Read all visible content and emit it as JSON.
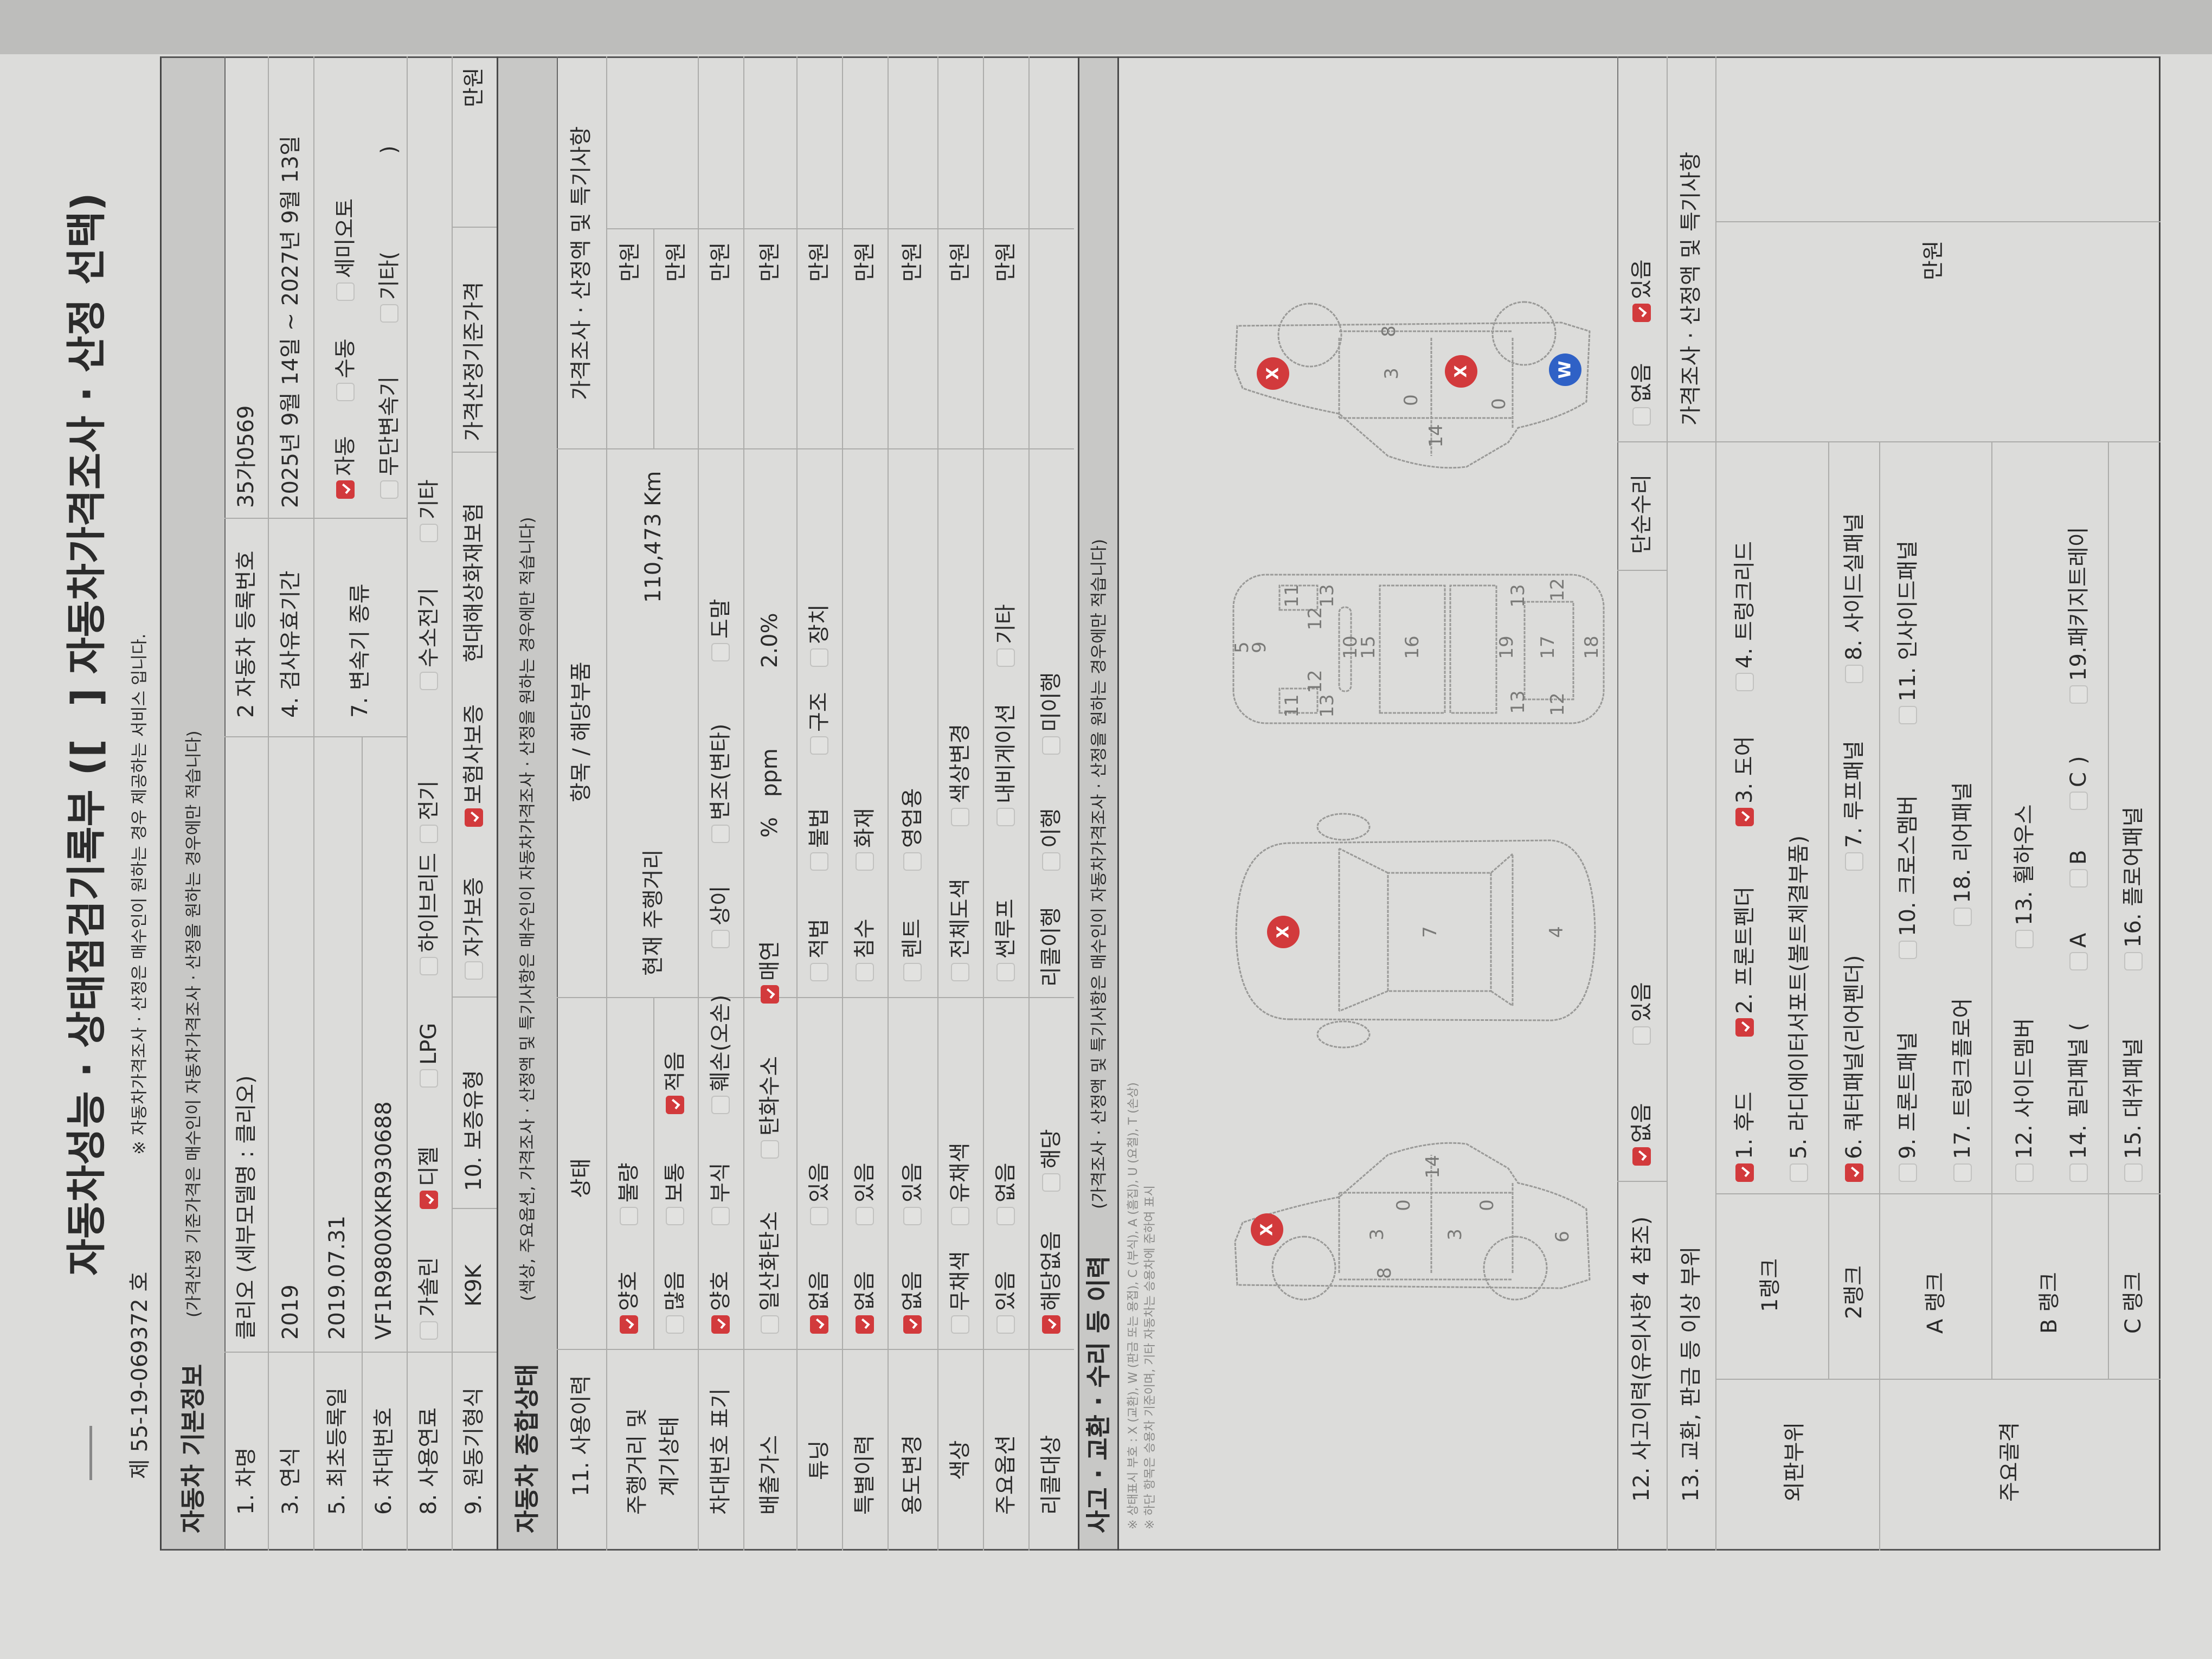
{
  "header": {
    "title_left": "자동차성능 · 상태점검기록부 ([",
    "title_right": "] 자동차가격조사 · 산정 선택)",
    "doc_number": "제 55-19-069372 호",
    "service_note": "※ 자동차가격조사 · 산정은 매수인이 원하는 경우 제공하는 서비스 입니다."
  },
  "basic": {
    "title": "자동차 기본정보",
    "note": "(가격산정 기준가격은 매수인이 자동차가격조사 · 산정을 원하는 경우에만 적습니다)",
    "car_name_label": "1. 차명",
    "car_name": "클리오 (세부모델명 : 클리오)",
    "reg_no_label": "2 자동차 등록번호",
    "reg_no": "35가0569",
    "year_label": "3. 연식",
    "year": "2019",
    "inspection_label": "4. 검사유효기간",
    "inspection": "2025년 9월 14일 ~ 2027년 9월 13일",
    "first_reg_label": "5. 최초등록일",
    "first_reg": "2019.07.31",
    "vin_label": "6. 차대번호",
    "vin": "VF1R9800XKR930688",
    "transmission_label": "7. 변속기 종류",
    "transmission_options": [
      {
        "label": "자동",
        "checked": true
      },
      {
        "label": "수동",
        "checked": false
      },
      {
        "label": "세미오토",
        "checked": false
      },
      {
        "label": "무단변속기",
        "checked": false
      },
      {
        "label": "기타(",
        "checked": false
      }
    ],
    "transmission_other_close": ")",
    "fuel_label": "8. 사용연료",
    "fuel_options": [
      {
        "label": "가솔린",
        "checked": false
      },
      {
        "label": "디젤",
        "checked": true
      },
      {
        "label": "LPG",
        "checked": false
      },
      {
        "label": "하이브리드",
        "checked": false
      },
      {
        "label": "전기",
        "checked": false
      },
      {
        "label": "수소전기",
        "checked": false
      },
      {
        "label": "기타",
        "checked": false
      }
    ],
    "engine_label": "9. 원동기형식",
    "engine": "K9K",
    "warranty_label": "10. 보증유형",
    "warranty_options": [
      {
        "label": "자가보증",
        "checked": false
      },
      {
        "label": "보험사보증",
        "checked": true
      }
    ],
    "insurer": "현대해상화재보험",
    "base_price_label": "가격산정기준가격",
    "base_price_unit": "만원"
  },
  "status": {
    "title": "자동차 종합상태",
    "note": "(색상, 주요옵션, 가격조사 · 산정액 및 특기사항은 매수인이 자동차가격조사 · 산정을 원하는 경우에만 적습니다)",
    "headers": {
      "usage": "11. 사용이력",
      "state": "상태",
      "item": "항목 / 해당부품",
      "price": "가격조사 · 산정액 및 특기사항"
    },
    "price_unit": "만원",
    "mileage": {
      "label_line1": "주행거리 및",
      "label_line2": "계기상태",
      "options": [
        {
          "label": "양호",
          "checked": true
        },
        {
          "label": "불량",
          "checked": false
        },
        {
          "label": "많음",
          "checked": false
        },
        {
          "label": "보통",
          "checked": false
        },
        {
          "label": "적음",
          "checked": true
        }
      ],
      "item_label": "현재 주행거리",
      "value": "110,473 Km"
    },
    "vin_mark": {
      "label": "차대번호 표기",
      "options": [
        {
          "label": "양호",
          "checked": true
        },
        {
          "label": "부식",
          "checked": false
        },
        {
          "label": "훼손(오손)",
          "checked": false
        },
        {
          "label": "상이",
          "checked": false
        },
        {
          "label": "변조(변타)",
          "checked": false
        },
        {
          "label": "도말",
          "checked": false
        }
      ]
    },
    "emission": {
      "label": "배출가스",
      "options": [
        {
          "label": "일산화탄소",
          "checked": false
        },
        {
          "label": "탄화수소",
          "checked": false
        },
        {
          "label": "매연",
          "checked": true
        }
      ],
      "values": [
        "%",
        "ppm",
        "2.0%"
      ]
    },
    "tuning": {
      "label": "튜닝",
      "options": [
        {
          "label": "없음",
          "checked": true
        },
        {
          "label": "있음",
          "checked": false
        },
        {
          "label": "적법",
          "checked": false
        },
        {
          "label": "불법",
          "checked": false
        },
        {
          "label": "구조",
          "checked": false
        },
        {
          "label": "장치",
          "checked": false
        }
      ]
    },
    "special": {
      "label": "특별이력",
      "options": [
        {
          "label": "없음",
          "checked": true
        },
        {
          "label": "있음",
          "checked": false
        },
        {
          "label": "침수",
          "checked": false
        },
        {
          "label": "화재",
          "checked": false
        }
      ]
    },
    "usage_change": {
      "label": "용도변경",
      "options": [
        {
          "label": "없음",
          "checked": true
        },
        {
          "label": "있음",
          "checked": false
        },
        {
          "label": "렌트",
          "checked": false
        },
        {
          "label": "영업용",
          "checked": false
        }
      ]
    },
    "color": {
      "label": "색상",
      "options": [
        {
          "label": "무채색",
          "checked": false
        },
        {
          "label": "유채색",
          "checked": false
        },
        {
          "label": "전체도색",
          "checked": false
        },
        {
          "label": "색상변경",
          "checked": false
        }
      ]
    },
    "main_options": {
      "label": "주요옵션",
      "options": [
        {
          "label": "있음",
          "checked": false
        },
        {
          "label": "없음",
          "checked": false
        },
        {
          "label": "썬루프",
          "checked": false
        },
        {
          "label": "내비게이션",
          "checked": false
        },
        {
          "label": "기타",
          "checked": false
        }
      ]
    },
    "recall": {
      "label": "리콜대상",
      "options": [
        {
          "label": "해당없음",
          "checked": true
        },
        {
          "label": "해당",
          "checked": false
        }
      ],
      "done_label": "리콜이행",
      "done_options": [
        {
          "label": "이행",
          "checked": false
        },
        {
          "label": "미이행",
          "checked": false
        }
      ]
    }
  },
  "accident": {
    "title": "사고 · 교환 · 수리 등 이력",
    "note": "(가격조사 · 산정액 및 특기사항은 매수인이 자동차가격조사 · 산정을 원하는 경우에만 적습니다)",
    "legend_note": "※ 상태표시 부호 : X (교환), W (판금 또는 용접), C (부식), A (흠집), U (요철), T (손상)",
    "scope_note": "※ 하단 항목은 승용차 기준이며, 기타 자동차는 승용차에 준하여 표시",
    "diagram_labels": [
      "3",
      "3",
      "0",
      "0",
      "14",
      "8",
      "6",
      "7",
      "4",
      "5",
      "9",
      "11",
      "11",
      "12",
      "12",
      "13",
      "13",
      "10",
      "15",
      "16",
      "19",
      "17",
      "18",
      "13",
      "13",
      "12",
      "12",
      "8",
      "3",
      "0",
      "0",
      "14"
    ],
    "markers": [
      "X",
      "X",
      "X",
      "X",
      "W"
    ],
    "marker_colors": {
      "X": "#d23a3c",
      "W": "#2f61c6"
    },
    "accident_label": "12. 사고이력(유의사항 4 참조)",
    "accident_options": [
      {
        "label": "없음",
        "checked": true
      },
      {
        "label": "있음",
        "checked": false
      }
    ],
    "simple_repair_label": "단순수리",
    "simple_repair_options": [
      {
        "label": "없음",
        "checked": false
      },
      {
        "label": "있음",
        "checked": true
      }
    ],
    "exchange_label": "13. 교환, 판금 등 이상 부위",
    "price_header": "가격조사 · 산정액 및 특기사항",
    "price_unit": "만원",
    "groups": {
      "outer": "외판부위",
      "frame": "주요골격"
    },
    "ranks": {
      "r1": "1랭크",
      "r2": "2랭크",
      "a": "A 랭크",
      "b": "B 랭크",
      "c": "C 랭크"
    },
    "parts": [
      {
        "label": "1. 후드",
        "checked": true
      },
      {
        "label": "2. 프론트펜더",
        "checked": true
      },
      {
        "label": "3. 도어",
        "checked": true
      },
      {
        "label": "4. 트렁크리드",
        "checked": false
      },
      {
        "label": "5. 라디에이터서포트(볼트체결부품)",
        "checked": false
      },
      {
        "label": "6. 쿼터패널(리어펜더)",
        "checked": true
      },
      {
        "label": "7. 루프패널",
        "checked": false
      },
      {
        "label": "8. 사이드실패널",
        "checked": false
      },
      {
        "label": "9. 프론트패널",
        "checked": false
      },
      {
        "label": "10. 크로스멤버",
        "checked": false
      },
      {
        "label": "11. 인사이드패널",
        "checked": false
      },
      {
        "label": "12. 사이드멤버",
        "checked": false
      },
      {
        "label": "13. 휠하우스",
        "checked": false
      },
      {
        "label": "14. 필러패널 (",
        "checked": false
      },
      {
        "label": "15. 대쉬패널",
        "checked": false
      },
      {
        "label": "16. 플로어패널",
        "checked": false
      },
      {
        "label": "17. 트렁크플로어",
        "checked": false
      },
      {
        "label": "18. 리어패널",
        "checked": false
      },
      {
        "label": "19.패키지트레이",
        "checked": false
      }
    ],
    "pillar_options": [
      {
        "label": "A",
        "checked": false
      },
      {
        "label": "B",
        "checked": false
      },
      {
        "label": "C",
        "checked": false
      }
    ],
    "pillar_close": ")"
  }
}
